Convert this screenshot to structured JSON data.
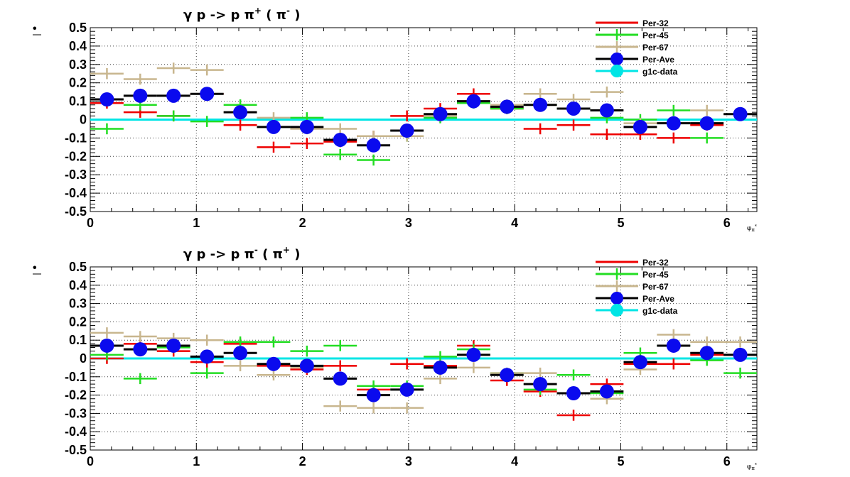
{
  "colors": {
    "per32": "#ee0000",
    "per45": "#22dd22",
    "per67": "#c8b68e",
    "perAve": "#000000",
    "perAveMarker": "#0a0aee",
    "g1c": "#00e5e5",
    "grid": "#444444",
    "frame": "#000000"
  },
  "chart_data": [
    {
      "type": "scatter",
      "title": "γ p -> p π⁺ ( π⁻ )",
      "title_parts": {
        "base": "γ p -> p π",
        "sup1": "+",
        "mid": " ( π",
        "sup2": "-",
        "end": " )"
      },
      "marker_label": "•",
      "xunit_label": "φ",
      "xunit_sub": "π",
      "xunit_sup": "*",
      "xlim": [
        0,
        6.283
      ],
      "ylim": [
        -0.5,
        0.5
      ],
      "grid": true,
      "legend_position": "top-right",
      "x_ticks": [
        "0",
        "1",
        "2",
        "3",
        "4",
        "5",
        "6"
      ],
      "y_ticks": [
        "0.5",
        "0.4",
        "0.3",
        "0.2",
        "0.1",
        "0",
        "-0.1",
        "-0.2",
        "-0.3",
        "-0.4",
        "-0.5"
      ],
      "bin_half_width": 0.157,
      "x": [
        0.157,
        0.471,
        0.785,
        1.1,
        1.414,
        1.728,
        2.042,
        2.356,
        2.67,
        2.985,
        3.299,
        3.613,
        3.927,
        4.241,
        4.555,
        4.869,
        5.184,
        5.498,
        5.812,
        6.126
      ],
      "legend": [
        "Per-32",
        "Per-45",
        "Per-67",
        "Per-Ave",
        "g1c-data"
      ],
      "series": [
        {
          "name": "Per-32",
          "values": [
            0.09,
            0.04,
            0.02,
            0.14,
            -0.03,
            -0.15,
            -0.13,
            -0.12,
            -0.09,
            0.02,
            0.06,
            0.14,
            0.06,
            -0.05,
            -0.03,
            -0.08,
            -0.08,
            -0.1,
            -0.03,
            0.03
          ],
          "errors": [
            0.03,
            0.03,
            0.03,
            0.03,
            0.03,
            0.03,
            0.03,
            0.03,
            0.03,
            0.03,
            0.03,
            0.03,
            0.03,
            0.03,
            0.03,
            0.03,
            0.03,
            0.03,
            0.03,
            0.03
          ]
        },
        {
          "name": "Per-45",
          "values": [
            -0.05,
            0.08,
            0.02,
            -0.01,
            0.08,
            -0.04,
            0.01,
            -0.19,
            -0.22,
            -0.09,
            0.01,
            0.09,
            0.06,
            0.08,
            0.06,
            0.01,
            0.0,
            0.05,
            -0.1,
            0.03
          ],
          "errors": [
            0.03,
            0.03,
            0.03,
            0.03,
            0.03,
            0.03,
            0.03,
            0.03,
            0.03,
            0.03,
            0.03,
            0.03,
            0.03,
            0.03,
            0.03,
            0.03,
            0.03,
            0.03,
            0.03,
            0.03
          ]
        },
        {
          "name": "Per-67",
          "values": [
            0.25,
            0.22,
            0.28,
            0.27,
            0.04,
            0.01,
            -0.05,
            -0.05,
            -0.09,
            -0.09,
            0.02,
            0.1,
            0.08,
            0.14,
            0.11,
            0.15,
            -0.02,
            -0.02,
            0.05,
            0.03
          ],
          "errors": [
            0.03,
            0.03,
            0.03,
            0.03,
            0.03,
            0.03,
            0.03,
            0.03,
            0.03,
            0.03,
            0.03,
            0.03,
            0.03,
            0.03,
            0.03,
            0.03,
            0.03,
            0.03,
            0.03,
            0.03
          ]
        },
        {
          "name": "Per-Ave",
          "values": [
            0.11,
            0.13,
            0.13,
            0.14,
            0.04,
            -0.04,
            -0.04,
            -0.11,
            -0.14,
            -0.06,
            0.03,
            0.1,
            0.07,
            0.08,
            0.06,
            0.05,
            -0.04,
            -0.02,
            -0.02,
            0.03
          ],
          "errors": [
            0.015,
            0.015,
            0.015,
            0.015,
            0.015,
            0.015,
            0.015,
            0.015,
            0.015,
            0.015,
            0.015,
            0.015,
            0.015,
            0.015,
            0.015,
            0.015,
            0.015,
            0.015,
            0.015,
            0.015
          ]
        },
        {
          "name": "g1c-data",
          "values": [
            0.0,
            0.0,
            0.0,
            0.0,
            0.0,
            0.0,
            0.0,
            0.0,
            0.0,
            0.0,
            0.0,
            0.0,
            0.0,
            0.0,
            0.0,
            0.0,
            0.0,
            0.0,
            0.0,
            0.0
          ]
        }
      ]
    },
    {
      "type": "scatter",
      "title": "γ p -> p π⁻ ( π⁺ )",
      "title_parts": {
        "base": "γ p -> p π",
        "sup1": "-",
        "mid": " ( π",
        "sup2": "+",
        "end": " )"
      },
      "marker_label": "•",
      "xunit_label": "φ",
      "xunit_sub": "π",
      "xunit_sup": "*",
      "xlim": [
        0,
        6.283
      ],
      "ylim": [
        -0.5,
        0.5
      ],
      "grid": true,
      "legend_position": "top-right",
      "x_ticks": [
        "0",
        "1",
        "2",
        "3",
        "4",
        "5",
        "6"
      ],
      "y_ticks": [
        "0.5",
        "0.4",
        "0.3",
        "0.2",
        "0.1",
        "0",
        "-0.1",
        "-0.2",
        "-0.3",
        "-0.4",
        "-0.5"
      ],
      "bin_half_width": 0.157,
      "x": [
        0.157,
        0.471,
        0.785,
        1.1,
        1.414,
        1.728,
        2.042,
        2.356,
        2.67,
        2.985,
        3.299,
        3.613,
        3.927,
        4.241,
        4.555,
        4.869,
        5.184,
        5.498,
        5.812,
        6.126
      ],
      "legend": [
        "Per-32",
        "Per-45",
        "Per-67",
        "Per-Ave",
        "g1c-data"
      ],
      "series": [
        {
          "name": "Per-32",
          "values": [
            0.0,
            0.08,
            0.04,
            -0.02,
            0.08,
            -0.04,
            -0.06,
            -0.04,
            -0.17,
            -0.03,
            -0.04,
            0.07,
            -0.12,
            -0.18,
            -0.31,
            -0.14,
            -0.03,
            -0.03,
            0.02,
            0.02
          ],
          "errors": [
            0.03,
            0.03,
            0.03,
            0.03,
            0.03,
            0.03,
            0.03,
            0.03,
            0.03,
            0.03,
            0.03,
            0.03,
            0.03,
            0.03,
            0.03,
            0.03,
            0.03,
            0.03,
            0.03,
            0.03
          ]
        },
        {
          "name": "Per-45",
          "values": [
            0.02,
            -0.11,
            0.06,
            -0.08,
            0.09,
            0.09,
            0.04,
            0.07,
            -0.15,
            -0.15,
            0.01,
            0.05,
            -0.08,
            -0.17,
            -0.09,
            -0.19,
            0.03,
            0.07,
            -0.01,
            -0.08
          ],
          "errors": [
            0.03,
            0.03,
            0.03,
            0.03,
            0.03,
            0.03,
            0.03,
            0.03,
            0.03,
            0.03,
            0.03,
            0.03,
            0.03,
            0.03,
            0.03,
            0.03,
            0.03,
            0.03,
            0.03,
            0.03
          ]
        },
        {
          "name": "Per-67",
          "values": [
            0.14,
            0.12,
            0.11,
            0.1,
            -0.04,
            -0.09,
            -0.05,
            -0.26,
            -0.27,
            -0.27,
            -0.11,
            -0.05,
            -0.08,
            -0.08,
            -0.19,
            -0.22,
            -0.06,
            0.13,
            0.09,
            0.09
          ],
          "errors": [
            0.03,
            0.03,
            0.03,
            0.03,
            0.03,
            0.03,
            0.03,
            0.03,
            0.03,
            0.03,
            0.03,
            0.03,
            0.03,
            0.03,
            0.03,
            0.03,
            0.03,
            0.03,
            0.03,
            0.03
          ]
        },
        {
          "name": "Per-Ave",
          "values": [
            0.07,
            0.05,
            0.07,
            0.01,
            0.03,
            -0.03,
            -0.04,
            -0.11,
            -0.2,
            -0.17,
            -0.05,
            0.02,
            -0.09,
            -0.14,
            -0.19,
            -0.18,
            -0.02,
            0.07,
            0.03,
            0.02
          ],
          "errors": [
            0.015,
            0.015,
            0.015,
            0.015,
            0.015,
            0.015,
            0.015,
            0.015,
            0.015,
            0.015,
            0.015,
            0.015,
            0.015,
            0.015,
            0.015,
            0.015,
            0.015,
            0.015,
            0.015,
            0.015
          ]
        },
        {
          "name": "g1c-data",
          "values": [
            0.0,
            0.0,
            0.0,
            0.0,
            0.0,
            0.0,
            0.0,
            0.0,
            0.0,
            0.0,
            0.0,
            0.0,
            0.0,
            0.0,
            0.0,
            0.0,
            0.0,
            0.0,
            0.0,
            0.0
          ]
        }
      ]
    }
  ]
}
